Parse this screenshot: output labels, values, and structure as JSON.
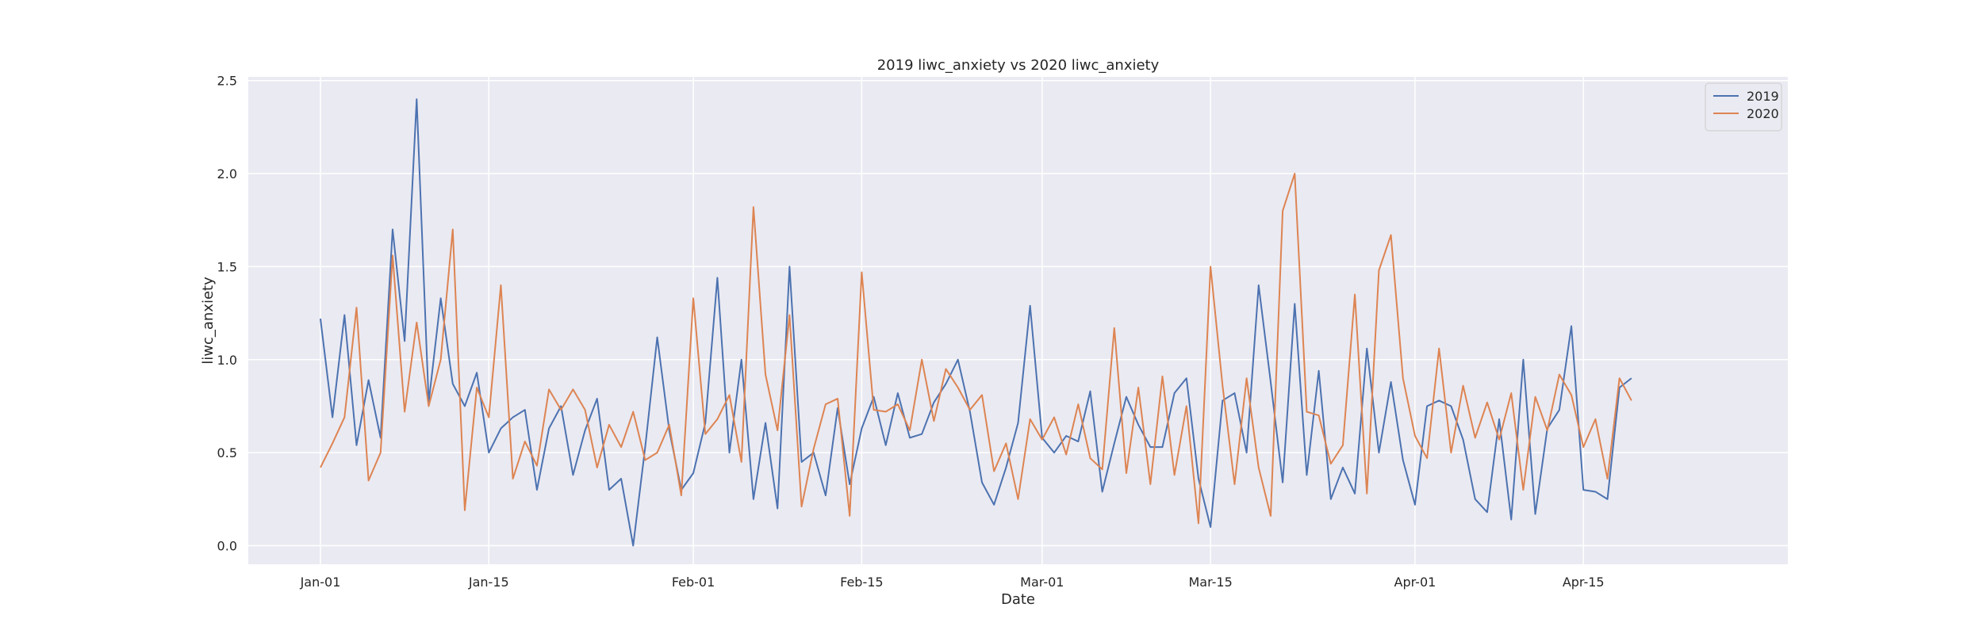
{
  "chart_data": {
    "type": "line",
    "title": "2019 liwc_anxiety vs 2020 liwc_anxiety",
    "xlabel": "Date",
    "ylabel": "liwc_anxiety",
    "x_start": "2020-01-01",
    "x_end": "2020-04-21",
    "xlim": [
      "2019-12-26",
      "2020-05-02"
    ],
    "ylim": [
      -0.1,
      2.52
    ],
    "x_ticks": [
      {
        "date": "2020-01-01",
        "label": "Jan-01"
      },
      {
        "date": "2020-01-15",
        "label": "Jan-15"
      },
      {
        "date": "2020-02-01",
        "label": "Feb-01"
      },
      {
        "date": "2020-02-15",
        "label": "Feb-15"
      },
      {
        "date": "2020-03-01",
        "label": "Mar-01"
      },
      {
        "date": "2020-03-15",
        "label": "Mar-15"
      },
      {
        "date": "2020-04-01",
        "label": "Apr-01"
      },
      {
        "date": "2020-04-15",
        "label": "Apr-15"
      }
    ],
    "y_ticks": [
      {
        "value": 0.0,
        "label": "0.0"
      },
      {
        "value": 0.5,
        "label": "0.5"
      },
      {
        "value": 1.0,
        "label": "1.0"
      },
      {
        "value": 1.5,
        "label": "1.5"
      },
      {
        "value": 2.0,
        "label": "2.0"
      },
      {
        "value": 2.5,
        "label": "2.5"
      }
    ],
    "grid": true,
    "legend_position": "top-right",
    "series": [
      {
        "name": "2019",
        "color": "#4c72b0",
        "values": [
          1.22,
          0.69,
          1.24,
          0.54,
          0.89,
          0.58,
          1.7,
          1.1,
          2.4,
          0.77,
          1.33,
          0.87,
          0.75,
          0.93,
          0.5,
          0.63,
          0.69,
          0.73,
          0.3,
          0.63,
          0.75,
          0.38,
          0.62,
          0.79,
          0.3,
          0.36,
          0.0,
          0.53,
          1.12,
          0.62,
          0.3,
          0.39,
          0.66,
          1.44,
          0.5,
          1.0,
          0.25,
          0.66,
          0.2,
          1.5,
          0.45,
          0.5,
          0.27,
          0.74,
          0.33,
          0.63,
          0.8,
          0.54,
          0.82,
          0.58,
          0.6,
          0.77,
          0.87,
          1.0,
          0.72,
          0.34,
          0.22,
          0.42,
          0.66,
          1.29,
          0.58,
          0.5,
          0.59,
          0.56,
          0.83,
          0.29,
          0.55,
          0.8,
          0.65,
          0.53,
          0.53,
          0.82,
          0.9,
          0.36,
          0.1,
          0.78,
          0.82,
          0.5,
          1.4,
          0.88,
          0.34,
          1.3,
          0.38,
          0.94,
          0.25,
          0.42,
          0.28,
          1.06,
          0.5,
          0.88,
          0.46,
          0.22,
          0.75,
          0.78,
          0.75,
          0.57,
          0.25,
          0.18,
          0.68,
          0.14,
          1.0,
          0.17,
          0.63,
          0.73,
          1.18,
          0.3,
          0.29,
          0.25,
          0.85,
          0.9
        ]
      },
      {
        "name": "2020",
        "color": "#dd8452",
        "values": [
          0.42,
          0.55,
          0.69,
          1.28,
          0.35,
          0.5,
          1.56,
          0.72,
          1.2,
          0.75,
          1.0,
          1.7,
          0.19,
          0.85,
          0.69,
          1.4,
          0.36,
          0.56,
          0.43,
          0.84,
          0.73,
          0.84,
          0.73,
          0.42,
          0.65,
          0.53,
          0.72,
          0.46,
          0.5,
          0.65,
          0.27,
          1.33,
          0.6,
          0.68,
          0.81,
          0.45,
          1.82,
          0.92,
          0.62,
          1.24,
          0.21,
          0.52,
          0.76,
          0.79,
          0.16,
          1.47,
          0.73,
          0.72,
          0.76,
          0.62,
          1.0,
          0.67,
          0.95,
          0.85,
          0.73,
          0.81,
          0.4,
          0.55,
          0.25,
          0.68,
          0.57,
          0.69,
          0.49,
          0.76,
          0.47,
          0.41,
          1.17,
          0.39,
          0.85,
          0.33,
          0.91,
          0.38,
          0.75,
          0.12,
          1.5,
          0.86,
          0.33,
          0.9,
          0.42,
          0.16,
          1.8,
          2.0,
          0.72,
          0.7,
          0.44,
          0.54,
          1.35,
          0.28,
          1.48,
          1.67,
          0.9,
          0.59,
          0.47,
          1.06,
          0.5,
          0.86,
          0.58,
          0.77,
          0.57,
          0.82,
          0.3,
          0.8,
          0.62,
          0.92,
          0.81,
          0.53,
          0.68,
          0.36,
          0.9,
          0.78
        ]
      }
    ]
  }
}
